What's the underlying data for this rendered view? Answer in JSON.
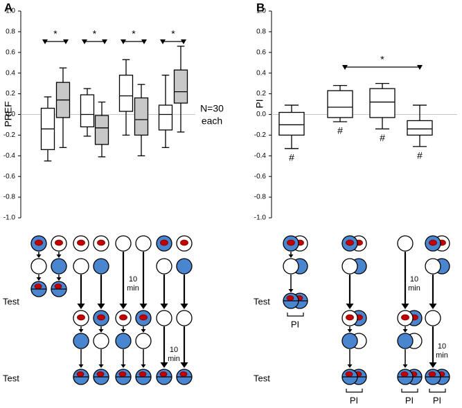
{
  "chart_data": [
    {
      "type": "box",
      "panel": "A",
      "ylabel": "PREF",
      "ylim": [
        -1,
        1
      ],
      "yticks": [
        {
          "value": -1,
          "label": "-1.0"
        },
        -0.8,
        -0.6,
        -0.4,
        -0.2,
        {
          "value": 0,
          "label": "0.0"
        },
        0.2,
        0.4,
        0.6,
        0.8,
        {
          "value": 1,
          "label": "1.0"
        }
      ],
      "reference_line": 0,
      "boxes": [
        {
          "whisker_low": -0.45,
          "q1": -0.34,
          "median": -0.14,
          "q3": 0.06,
          "whisker_high": 0.17,
          "fill": "#ffffff"
        },
        {
          "whisker_low": -0.32,
          "q1": -0.03,
          "median": 0.14,
          "q3": 0.31,
          "whisker_high": 0.45,
          "fill": "#c8c8c8"
        },
        {
          "whisker_low": -0.21,
          "q1": -0.12,
          "median": 0.0,
          "q3": 0.19,
          "whisker_high": 0.25,
          "fill": "#ffffff"
        },
        {
          "whisker_low": -0.41,
          "q1": -0.29,
          "median": -0.13,
          "q3": -0.01,
          "whisker_high": 0.12,
          "fill": "#c8c8c8"
        },
        {
          "whisker_low": -0.2,
          "q1": 0.03,
          "median": 0.18,
          "q3": 0.38,
          "whisker_high": 0.53,
          "fill": "#ffffff"
        },
        {
          "whisker_low": -0.4,
          "q1": -0.2,
          "median": -0.05,
          "q3": 0.16,
          "whisker_high": 0.29,
          "fill": "#c8c8c8"
        },
        {
          "whisker_low": -0.32,
          "q1": -0.15,
          "median": 0.0,
          "q3": 0.09,
          "whisker_high": 0.38,
          "fill": "#ffffff"
        },
        {
          "whisker_low": -0.17,
          "q1": 0.11,
          "median": 0.22,
          "q3": 0.43,
          "whisker_high": 0.66,
          "fill": "#c8c8c8"
        }
      ],
      "significance_labels": [
        "*",
        "*",
        "*",
        "*"
      ],
      "annotation": [
        "N=30",
        "each"
      ]
    },
    {
      "type": "box",
      "panel": "B",
      "ylabel": "PI",
      "ylim": [
        -1,
        1
      ],
      "yticks": [
        {
          "value": -1,
          "label": "-1.0"
        },
        -0.8,
        -0.6,
        -0.4,
        -0.2,
        {
          "value": 0,
          "label": "0.0"
        },
        0.2,
        0.4,
        0.6,
        0.8,
        {
          "value": 1,
          "label": "1.0"
        }
      ],
      "reference_line": 0,
      "boxes": [
        {
          "whisker_low": -0.33,
          "q1": -0.2,
          "median": -0.1,
          "q3": 0.02,
          "whisker_high": 0.09,
          "fill": "#ffffff"
        },
        {
          "whisker_low": -0.07,
          "q1": -0.03,
          "median": 0.07,
          "q3": 0.23,
          "whisker_high": 0.28,
          "fill": "#ffffff"
        },
        {
          "whisker_low": -0.14,
          "q1": -0.03,
          "median": 0.12,
          "q3": 0.25,
          "whisker_high": 0.3,
          "fill": "#ffffff"
        },
        {
          "whisker_low": -0.31,
          "q1": -0.2,
          "median": -0.14,
          "q3": -0.06,
          "whisker_high": 0.09,
          "fill": "#ffffff"
        }
      ],
      "box_labels": [
        "#",
        "#",
        "#",
        "#"
      ],
      "significance_labels": [
        "*"
      ]
    }
  ],
  "diagram_a": {
    "test_labels": [
      "Test",
      "Test"
    ],
    "delay_labels": [
      [
        "10",
        "min"
      ],
      [
        "10",
        "min"
      ]
    ]
  },
  "diagram_b": {
    "test_labels": [
      "Test",
      "Test"
    ],
    "delay_labels": [
      [
        "10",
        "min"
      ],
      [
        "10",
        "min"
      ]
    ],
    "pi_labels": [
      "PI",
      "PI",
      "PI",
      "PI"
    ]
  }
}
